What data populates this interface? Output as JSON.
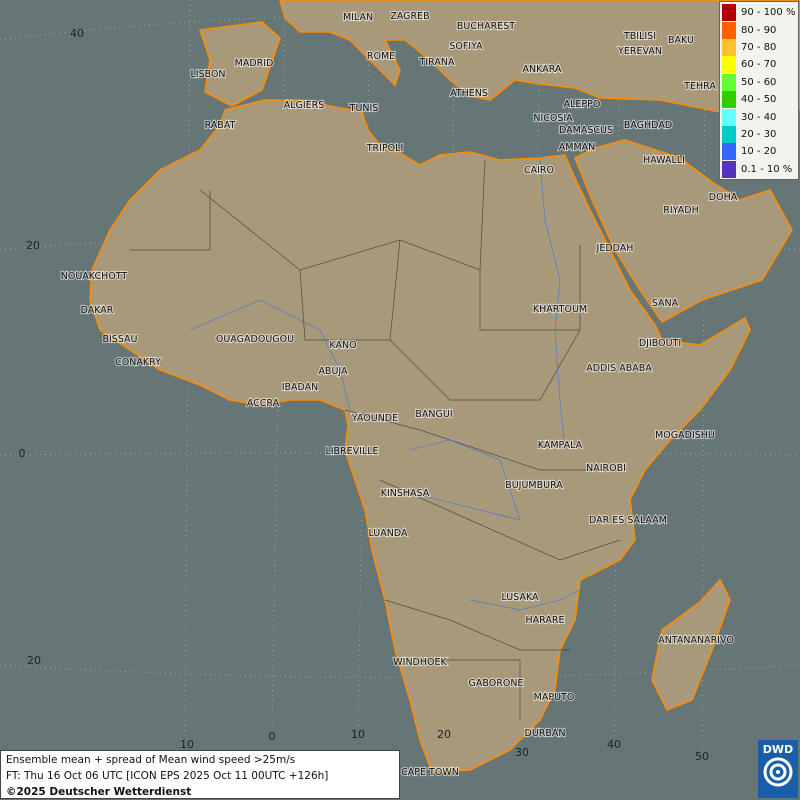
{
  "map": {
    "colors": {
      "sea": "#667676",
      "land": "#a8997a",
      "coast": "#ff8c00",
      "border": "#2a2a2a",
      "river": "#4a7bd0"
    },
    "grid_labels": {
      "latitudes": [
        "40",
        "20",
        "0",
        "20"
      ],
      "longitudes": [
        "10",
        "0",
        "10",
        "20",
        "30",
        "40",
        "50"
      ]
    },
    "cities": [
      "MILAN",
      "ZAGREB",
      "BUCHAREST",
      "SOFIYA",
      "ROME",
      "TIRANA",
      "MADRID",
      "LISBON",
      "ANKARA",
      "ATHENS",
      "TBILISI",
      "BAKU",
      "YEREVAN",
      "TEHRA",
      "ALGIERS",
      "TUNIS",
      "RABAT",
      "ALEPPO",
      "NICOSIA",
      "BAGHDAD",
      "DAMASCUS",
      "TRIPOLI",
      "AMMAN",
      "CAIRO",
      "HAWALLI",
      "DOHA",
      "RIYADH",
      "JEDDAH",
      "NOUAKCHOTT",
      "SANA",
      "DAKAR",
      "KHARTOUM",
      "BISSAU",
      "DJIBOUTI",
      "OUAGADOUGOU",
      "KANO",
      "CONAKRY",
      "ADDIS ABABA",
      "ABUJA",
      "IBADAN",
      "ACCRA",
      "YAOUNDE",
      "BANGUI",
      "MOGADISHU",
      "LIBREVILLE",
      "KAMPALA",
      "NAIROBI",
      "KINSHASA",
      "BUJUMBURA",
      "DAR ES SALAAM",
      "LUANDA",
      "LUSAKA",
      "HARARE",
      "ANTANANARIVO",
      "WINDHOEK",
      "GABORONE",
      "MAPUTO",
      "DURBAN",
      "CAPE TOWN"
    ]
  },
  "legend": {
    "items": [
      {
        "label": "90 - 100 %",
        "color": "#b00000"
      },
      {
        "label": "80 - 90",
        "color": "#ff6000"
      },
      {
        "label": "70 - 80",
        "color": "#ffc030"
      },
      {
        "label": "60 - 70",
        "color": "#ffff00"
      },
      {
        "label": "50 - 60",
        "color": "#66ff33"
      },
      {
        "label": "40 - 50",
        "color": "#33cc00"
      },
      {
        "label": "30 - 40",
        "color": "#66ffff"
      },
      {
        "label": "20 - 30",
        "color": "#00cccc"
      },
      {
        "label": "10 - 20",
        "color": "#3366ff"
      },
      {
        "label": "0.1 - 10 %",
        "color": "#5533bb"
      }
    ]
  },
  "info": {
    "line1": "Ensemble mean + spread of Mean wind speed >25m/s",
    "line2": "FT: Thu 16 Oct 06 UTC [ICON EPS 2025 Oct 11 00UTC +126h]",
    "line3": "©2025 Deutscher Wetterdienst"
  },
  "logo": {
    "text": "DWD"
  }
}
